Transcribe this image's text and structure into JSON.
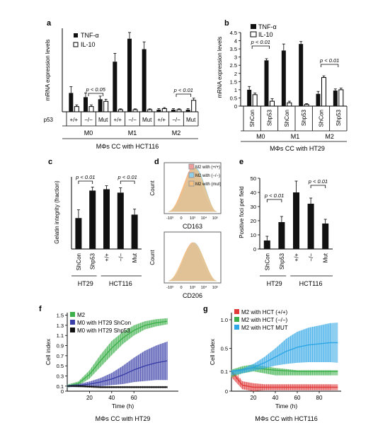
{
  "colors": {
    "black": "#111111",
    "white": "#ffffff",
    "green": "#3db04b",
    "blue_dark": "#3b3fa8",
    "blue_light": "#2fa6e6",
    "red": "#e03a3a",
    "hist_red": "#f19b9b",
    "hist_blue": "#8ecfea",
    "hist_orange": "#f3c07f"
  },
  "chart_data": [
    {
      "panel": "a",
      "type": "bar",
      "ylabel": "mRNA expression levels",
      "legend": [
        "TNF-α",
        "IL-10"
      ],
      "row_label": "p53",
      "categories": [
        "+/+",
        "−/−",
        "Mut",
        "+/+",
        "−/−",
        "Mut",
        "+/+",
        "−/−",
        "Mut"
      ],
      "groups": [
        "M0",
        "M1",
        "M2"
      ],
      "series": [
        {
          "name": "TNF-α",
          "values": [
            0.9,
            0.7,
            0.6,
            2.4,
            3.5,
            3.0,
            0.1,
            0.1,
            0.1
          ],
          "err": [
            0.3,
            0.2,
            0.15,
            0.4,
            0.3,
            0.35,
            0.05,
            0.05,
            0.05
          ]
        },
        {
          "name": "IL-10",
          "values": [
            0.25,
            0.25,
            0.5,
            0.1,
            0.1,
            0.1,
            0.15,
            0.1,
            0.55
          ],
          "err": [
            0.08,
            0.08,
            0.1,
            0.04,
            0.04,
            0.04,
            0.05,
            0.04,
            0.1
          ]
        }
      ],
      "ylim": [
        0,
        4
      ],
      "annotations": [
        "p < 0.05",
        "p < 0.01"
      ],
      "xlabel": "MΦs CC with HCT116"
    },
    {
      "panel": "b",
      "type": "bar",
      "ylabel": "mRNA expression levels",
      "legend": [
        "TNF-α",
        "IL-10"
      ],
      "categories": [
        "ShCon",
        "Shp53",
        "ShCon",
        "Shp53",
        "ShCon",
        "Shp53"
      ],
      "groups": [
        "M0",
        "M1",
        "M2"
      ],
      "series": [
        {
          "name": "TNF-α",
          "values": [
            1.0,
            2.8,
            3.4,
            3.8,
            0.75,
            0.95
          ],
          "err": [
            0.2,
            0.1,
            0.4,
            0.15,
            0.15,
            0.1
          ]
        },
        {
          "name": "IL-10",
          "values": [
            0.7,
            0.3,
            0.2,
            0.1,
            1.75,
            1.0
          ],
          "err": [
            0.1,
            0.15,
            0.1,
            0.05,
            0.1,
            0.1
          ]
        }
      ],
      "yticks": [
        "0",
        "0.5",
        "1",
        "1.5",
        "2",
        "2.5",
        "3",
        "3.5",
        "4",
        "4.5"
      ],
      "ylim": [
        0,
        4.5
      ],
      "annotations": [
        "p < 0.01",
        "p < 0.01"
      ],
      "xlabel": "MΦs CC with HT29"
    },
    {
      "panel": "c",
      "type": "bar",
      "ylabel": "Gelatin integrity (fraction)",
      "categories": [
        "ShCon",
        "Shp53",
        "+/+",
        "−/−",
        "Mut"
      ],
      "group_labels": [
        "HT29",
        "HCT116"
      ],
      "values": [
        0.45,
        0.85,
        0.87,
        0.82,
        0.5
      ],
      "err": [
        0.12,
        0.05,
        0.05,
        0.07,
        0.08
      ],
      "ylim": [
        0,
        1.05
      ],
      "annotations": [
        "p < 0.01",
        "p < 0.01"
      ]
    },
    {
      "panel": "d",
      "type": "histogram",
      "legend": [
        "M2 with (+/+)",
        "M2 with (−/−)",
        "M2 with (mut)"
      ],
      "ylabel": "Count",
      "plots": [
        {
          "xlabel": "CD163"
        },
        {
          "xlabel": "CD206"
        }
      ],
      "xticks": [
        "-10³",
        "0",
        "10³",
        "10⁴",
        "10⁵"
      ]
    },
    {
      "panel": "e",
      "type": "bar",
      "ylabel": "Positive foci per field",
      "categories": [
        "ShCon",
        "Shp53",
        "+/+",
        "−/−",
        "Mut"
      ],
      "group_labels": [
        "HT29",
        "HCT116"
      ],
      "values": [
        6,
        19,
        40,
        32,
        18
      ],
      "err": [
        3,
        4,
        8,
        4,
        3
      ],
      "yticks": [
        "0",
        "10",
        "20",
        "30",
        "40",
        "50"
      ],
      "ylim": [
        0,
        50
      ],
      "annotations": [
        "p < 0.01",
        "p < 0.01"
      ]
    },
    {
      "panel": "f",
      "type": "line",
      "ylabel": "Cell index",
      "xlabel": "Time (h)",
      "xticks": [
        "20",
        "40",
        "60"
      ],
      "yticks": [
        "0",
        "0.1",
        "0.3",
        "0.5",
        "0.7",
        "0.9",
        "1.1",
        "1.3",
        "1.5"
      ],
      "xlim": [
        0,
        100
      ],
      "ylim": [
        0,
        1.55
      ],
      "series": [
        {
          "name": "M2",
          "x": [
            0,
            10,
            20,
            30,
            40,
            50,
            60,
            70,
            80,
            90
          ],
          "y": [
            0.1,
            0.15,
            0.33,
            0.6,
            0.85,
            1.05,
            1.2,
            1.3,
            1.35,
            1.38
          ],
          "err": [
            0.03,
            0.04,
            0.08,
            0.12,
            0.14,
            0.12,
            0.1,
            0.08,
            0.07,
            0.06
          ]
        },
        {
          "name": "M0 with HT29 ShCon",
          "x": [
            0,
            10,
            20,
            30,
            40,
            50,
            60,
            70,
            80,
            90
          ],
          "y": [
            0.1,
            0.11,
            0.14,
            0.18,
            0.24,
            0.32,
            0.42,
            0.5,
            0.56,
            0.6
          ],
          "err": [
            0.02,
            0.03,
            0.05,
            0.08,
            0.12,
            0.18,
            0.24,
            0.3,
            0.34,
            0.38
          ]
        },
        {
          "name": "M0 with HT29 Shp53",
          "x": [
            0,
            10,
            20,
            30,
            40,
            50,
            60,
            70,
            80,
            90
          ],
          "y": [
            0.1,
            0.1,
            0.09,
            0.08,
            0.08,
            0.08,
            0.08,
            0.08,
            0.08,
            0.08
          ],
          "err": [
            0.01,
            0.02,
            0.02,
            0.02,
            0.02,
            0.02,
            0.02,
            0.02,
            0.02,
            0.02
          ]
        }
      ],
      "caption": "MΦs CC with HT29"
    },
    {
      "panel": "g",
      "type": "line",
      "ylabel": "Cell index",
      "xlabel": "Time (h)",
      "xticks": [
        "20",
        "40",
        "60",
        "80"
      ],
      "yticks": [
        "0",
        "0.1",
        "0.5",
        "1.0"
      ],
      "xlim": [
        0,
        100
      ],
      "ylim": [
        0,
        1.15
      ],
      "series": [
        {
          "name": "M2 with HCT (+/+)",
          "x": [
            0,
            10,
            20,
            30,
            40,
            50,
            60,
            70,
            80,
            90,
            97
          ],
          "y": [
            0.1,
            0.03,
            0.02,
            0.02,
            0.02,
            0.02,
            0.02,
            0.02,
            0.02,
            0.02,
            0.02
          ],
          "err": [
            0.03,
            0.02,
            0.02,
            0.015,
            0.015,
            0.015,
            0.015,
            0.015,
            0.015,
            0.015,
            0.015
          ]
        },
        {
          "name": "M2 with HCT (−/−)",
          "x": [
            0,
            10,
            20,
            30,
            40,
            50,
            60,
            70,
            80,
            90,
            97
          ],
          "y": [
            0.1,
            0.14,
            0.16,
            0.14,
            0.12,
            0.11,
            0.1,
            0.1,
            0.1,
            0.1,
            0.1
          ],
          "err": [
            0.03,
            0.05,
            0.06,
            0.05,
            0.04,
            0.03,
            0.02,
            0.02,
            0.02,
            0.02,
            0.02
          ]
        },
        {
          "name": "M2 with HCT MUT",
          "x": [
            0,
            10,
            20,
            30,
            40,
            50,
            60,
            70,
            80,
            90,
            97
          ],
          "y": [
            0.1,
            0.12,
            0.17,
            0.25,
            0.35,
            0.45,
            0.52,
            0.56,
            0.58,
            0.6,
            0.6
          ],
          "err": [
            0.02,
            0.03,
            0.06,
            0.1,
            0.15,
            0.22,
            0.27,
            0.3,
            0.32,
            0.34,
            0.35
          ]
        }
      ],
      "caption": "MΦs CC with HCT116"
    }
  ]
}
